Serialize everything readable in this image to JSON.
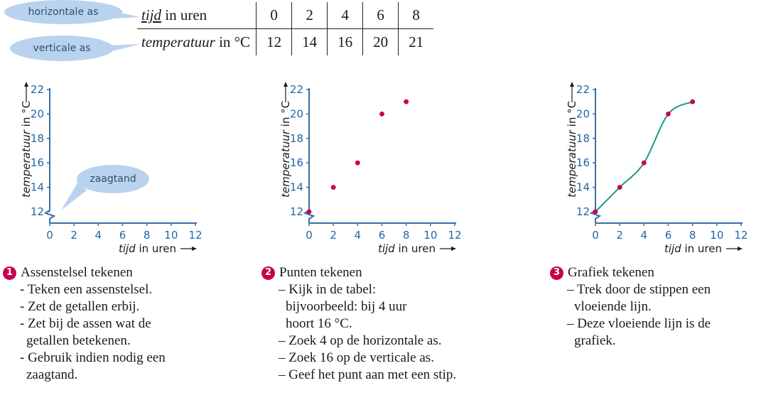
{
  "bubbles": {
    "horizontal": "horizontale as",
    "vertical": "verticale as",
    "sawtooth": "zaagtand"
  },
  "table": {
    "row1": {
      "label_italic": "tijd",
      "label_rest": " in uren",
      "values": [
        "0",
        "2",
        "4",
        "6",
        "8"
      ]
    },
    "row2": {
      "label_italic": "temperatuur",
      "label_rest": " in °C",
      "values": [
        "12",
        "14",
        "16",
        "20",
        "21"
      ]
    }
  },
  "axes": {
    "ylabel_italic": "temperatuur",
    "ylabel_rest": " in °C",
    "xlabel_italic": "tijd",
    "xlabel_rest": " in uren",
    "xticks": [
      "0",
      "2",
      "4",
      "6",
      "8",
      "10",
      "12"
    ],
    "yticks": [
      "12",
      "14",
      "16",
      "18",
      "20",
      "22"
    ],
    "xlim": [
      0,
      12
    ],
    "ylim": [
      12,
      22
    ]
  },
  "colors": {
    "axis": "#3a6ea5",
    "tick": "#1f66a8",
    "point": "#c8004e",
    "curve": "#1a9a8a",
    "bubble": "#b9d3ee"
  },
  "chart_data": [
    {
      "type": "line",
      "x": [],
      "y": [],
      "xlabel": "tijd in uren",
      "ylabel": "temperatuur in °C",
      "xlim": [
        0,
        12
      ],
      "ylim": [
        12,
        22
      ]
    },
    {
      "type": "scatter",
      "x": [
        0,
        2,
        4,
        6,
        8
      ],
      "y": [
        12,
        14,
        16,
        20,
        21
      ],
      "xlabel": "tijd in uren",
      "ylabel": "temperatuur in °C",
      "xlim": [
        0,
        12
      ],
      "ylim": [
        12,
        22
      ]
    },
    {
      "type": "line",
      "x": [
        0,
        2,
        4,
        6,
        8
      ],
      "y": [
        12,
        14,
        16,
        20,
        21
      ],
      "xlabel": "tijd in uren",
      "ylabel": "temperatuur in °C",
      "xlim": [
        0,
        12
      ],
      "ylim": [
        12,
        22
      ]
    }
  ],
  "steps": [
    {
      "number": "1",
      "title": "Assenstelsel tekenen",
      "items": [
        "- Teken een assenstelsel.",
        "- Zet de getallen erbij.",
        "- Zet bij de assen wat de",
        "  getallen betekenen.",
        "- Gebruik indien nodig een",
        "  zaagtand."
      ]
    },
    {
      "number": "2",
      "title": "Punten tekenen",
      "items": [
        "– Kijk in de tabel:",
        "  bijvoorbeeld: bij 4 uur",
        "  hoort 16 °C.",
        "– Zoek 4 op de horizontale as.",
        "– Zoek 16 op de verticale as.",
        "– Geef het punt aan met een stip."
      ]
    },
    {
      "number": "3",
      "title": "Grafiek tekenen",
      "items": [
        "– Trek door de stippen een",
        "  vloeiende lijn.",
        "– Deze vloeiende lijn is de",
        "  grafiek."
      ]
    }
  ]
}
